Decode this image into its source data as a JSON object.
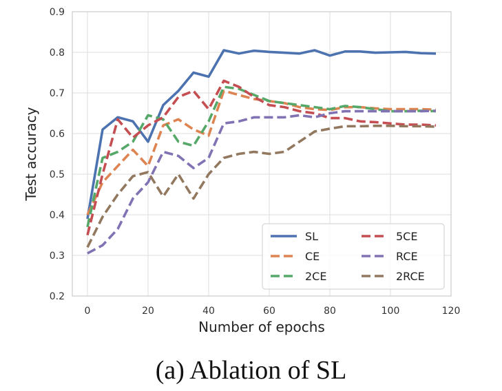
{
  "chart_data": {
    "type": "line",
    "xlabel": "Number of epochs",
    "ylabel": "Test accuracy",
    "xlim": [
      -5,
      120
    ],
    "ylim": [
      0.2,
      0.9
    ],
    "xticks": [
      0,
      20,
      40,
      60,
      80,
      100,
      120
    ],
    "yticks": [
      0.2,
      0.3,
      0.4,
      0.5,
      0.6,
      0.7,
      0.8,
      0.9
    ],
    "xtick_labels": [
      "0",
      "20",
      "40",
      "60",
      "80",
      "100",
      "120"
    ],
    "ytick_labels": [
      "0.2",
      "0.3",
      "0.4",
      "0.5",
      "0.6",
      "0.7",
      "0.8",
      "0.9"
    ],
    "grid": true,
    "legend_position": "bottom-right",
    "x": [
      0,
      5,
      10,
      15,
      20,
      25,
      30,
      35,
      40,
      45,
      50,
      55,
      60,
      65,
      70,
      75,
      80,
      85,
      90,
      95,
      100,
      105,
      110,
      115
    ],
    "series": [
      {
        "name": "SL",
        "color": "#4c72b0",
        "style": "solid",
        "values": [
          0.39,
          0.61,
          0.64,
          0.63,
          0.58,
          0.67,
          0.705,
          0.75,
          0.74,
          0.805,
          0.797,
          0.804,
          0.801,
          0.799,
          0.797,
          0.805,
          0.792,
          0.802,
          0.802,
          0.799,
          0.8,
          0.801,
          0.798,
          0.797
        ]
      },
      {
        "name": "CE",
        "color": "#dd8452",
        "style": "dashed",
        "values": [
          0.4,
          0.48,
          0.52,
          0.56,
          0.52,
          0.62,
          0.635,
          0.61,
          0.595,
          0.705,
          0.695,
          0.685,
          0.68,
          0.675,
          0.665,
          0.66,
          0.658,
          0.665,
          0.665,
          0.662,
          0.66,
          0.66,
          0.66,
          0.659
        ]
      },
      {
        "name": "2CE",
        "color": "#55a868",
        "style": "dashed",
        "values": [
          0.37,
          0.54,
          0.555,
          0.58,
          0.645,
          0.635,
          0.58,
          0.57,
          0.63,
          0.715,
          0.71,
          0.695,
          0.68,
          0.675,
          0.67,
          0.665,
          0.66,
          0.668,
          0.665,
          0.66,
          0.655,
          0.655,
          0.656,
          0.655
        ]
      },
      {
        "name": "5CE",
        "color": "#c44e52",
        "style": "dashed",
        "values": [
          0.35,
          0.5,
          0.635,
          0.59,
          0.62,
          0.64,
          0.69,
          0.705,
          0.66,
          0.73,
          0.715,
          0.69,
          0.67,
          0.665,
          0.655,
          0.65,
          0.638,
          0.638,
          0.63,
          0.628,
          0.625,
          0.622,
          0.622,
          0.62
        ]
      },
      {
        "name": "RCE",
        "color": "#8172b3",
        "style": "dashed",
        "values": [
          0.305,
          0.325,
          0.365,
          0.44,
          0.48,
          0.555,
          0.545,
          0.515,
          0.54,
          0.625,
          0.63,
          0.64,
          0.64,
          0.64,
          0.645,
          0.64,
          0.65,
          0.655,
          0.655,
          0.655,
          0.655,
          0.655,
          0.655,
          0.656
        ]
      },
      {
        "name": "2RCE",
        "color": "#937860",
        "style": "dashed",
        "values": [
          0.32,
          0.395,
          0.45,
          0.495,
          0.505,
          0.445,
          0.5,
          0.44,
          0.5,
          0.54,
          0.55,
          0.555,
          0.55,
          0.555,
          0.58,
          0.605,
          0.612,
          0.618,
          0.618,
          0.619,
          0.619,
          0.618,
          0.618,
          0.617
        ]
      }
    ]
  },
  "caption": "(a) Ablation of SL"
}
